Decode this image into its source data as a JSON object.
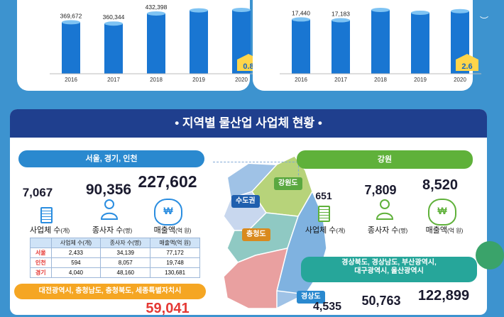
{
  "left_chart": {
    "bars": [
      {
        "year": "2016",
        "label": "369,672",
        "value": 369672
      },
      {
        "year": "2017",
        "label": "360,344",
        "value": 360344
      },
      {
        "year": "2018",
        "label": "432,398",
        "value": 432398
      },
      {
        "year": "2019",
        "label": "",
        "value": 455000
      },
      {
        "year": "2020",
        "label": "",
        "value": 458000
      }
    ],
    "increase": "0.8"
  },
  "right_chart": {
    "bars": [
      {
        "year": "2016",
        "label": "17,440",
        "value": 17440
      },
      {
        "year": "2017",
        "label": "17,183",
        "value": 17183
      },
      {
        "year": "2018",
        "label": "",
        "value": 20500
      },
      {
        "year": "2019",
        "label": "",
        "value": 19600
      },
      {
        "year": "2020",
        "label": "",
        "value": 20100
      }
    ],
    "increase": "2.6"
  },
  "section_title": "• 지역별 물산업 사업체 현황 •",
  "capital": {
    "region": "서울, 경기, 인천",
    "count": "7,067",
    "workers": "90,356",
    "sales": "227,602",
    "count_label": "사업체 수",
    "count_unit": "(개)",
    "workers_label": "종사자 수",
    "workers_unit": "(명)",
    "sales_label": "매출액",
    "sales_unit": "(억 원)",
    "table_headers": [
      "",
      "사업체 수(개)",
      "종사자 수(명)",
      "매출액(억 원)"
    ],
    "table_rows": [
      [
        "서울",
        "2,433",
        "34,139",
        "77,172"
      ],
      [
        "인천",
        "594",
        "8,057",
        "19,748"
      ],
      [
        "경기",
        "4,040",
        "48,160",
        "130,681"
      ]
    ]
  },
  "gangwon": {
    "region": "강원",
    "count": "651",
    "workers": "7,809",
    "sales": "8,520",
    "count_label": "사업체 수",
    "count_unit": "(개)",
    "workers_label": "종사자 수",
    "workers_unit": "(명)",
    "sales_label": "매출액",
    "sales_unit": "(억 원)"
  },
  "gyeongsang": {
    "region": "경상북도, 경상남도, 부산광역시,\n대구광역시, 울산광역시",
    "count": "4,535",
    "workers": "50,763",
    "sales": "122,899"
  },
  "chungcheong": {
    "region": "대전광역시, 충청남도, 충청북도, 세종특별자치시",
    "sales": "59,041"
  },
  "map_tags": {
    "capital": "수도권",
    "gangwon": "강원도",
    "chungcheong": "충청도",
    "gyeongsang": "경상도"
  },
  "icons": {
    "building": "building-icon",
    "person": "person-icon",
    "money": "money-bag-icon",
    "won": "₩"
  },
  "colors": {
    "navy": "#1f3f8e",
    "blue": "#3d93cf",
    "green": "#4caf50",
    "orange": "#f5a623",
    "teal": "#26a69a"
  }
}
